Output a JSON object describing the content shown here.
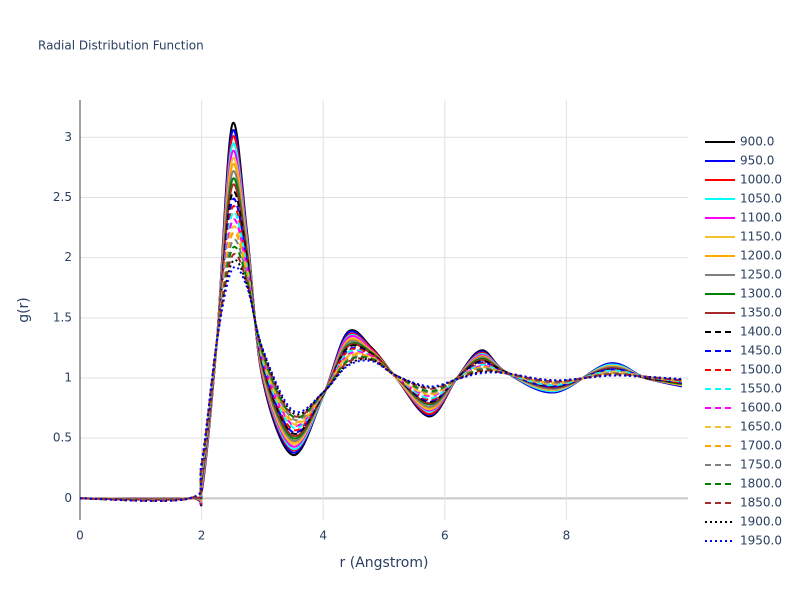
{
  "chart_data": {
    "type": "line",
    "title": "Radial Distribution Function",
    "x_label": "r (Angstrom)",
    "y_label": "g(r)",
    "x": [
      0,
      1.8,
      2.0,
      2.25,
      2.5,
      2.75,
      3.0,
      3.5,
      4.0,
      4.4,
      4.8,
      5.2,
      5.75,
      6.2,
      6.6,
      7.0,
      7.8,
      8.7,
      9.3,
      9.9
    ],
    "xlim": [
      0,
      10
    ],
    "xticks": [
      0,
      2,
      4,
      6,
      8
    ],
    "ylim": [
      -0.18,
      3.31
    ],
    "yticks": [
      0,
      0.5,
      1,
      1.5,
      2,
      2.5,
      3
    ],
    "grid": true,
    "legend": "right",
    "series": [
      {
        "name": "900.0",
        "color": "#000000",
        "dash": "solid",
        "values": [
          0,
          0,
          0.05,
          1.3,
          3.1,
          2.2,
          1,
          0.36,
          0.85,
          1.38,
          1.25,
          1,
          0.68,
          1,
          1.23,
          1.05,
          0.88,
          1.12,
          1,
          0.93
        ]
      },
      {
        "name": "950.0",
        "color": "#0000ff",
        "dash": "solid",
        "values": [
          0,
          0,
          0.06,
          1.3,
          3.04,
          2.18,
          1.01,
          0.38,
          0.85,
          1.37,
          1.24,
          1,
          0.69,
          1,
          1.22,
          1.05,
          0.88,
          1.12,
          1,
          0.93
        ]
      },
      {
        "name": "1000.0",
        "color": "#ff0000",
        "dash": "solid",
        "values": [
          0,
          0,
          0.07,
          1.3,
          2.99,
          2.16,
          1.02,
          0.4,
          0.85,
          1.35,
          1.24,
          1,
          0.7,
          1,
          1.21,
          1.05,
          0.89,
          1.11,
          1,
          0.94
        ]
      },
      {
        "name": "1050.0",
        "color": "#00ffff",
        "dash": "solid",
        "values": [
          0,
          0,
          0.09,
          1.3,
          2.93,
          2.14,
          1.04,
          0.41,
          0.85,
          1.34,
          1.23,
          1,
          0.72,
          1,
          1.2,
          1.05,
          0.89,
          1.11,
          1,
          0.94
        ]
      },
      {
        "name": "1100.0",
        "color": "#ff00ff",
        "dash": "solid",
        "values": [
          0,
          0,
          0.1,
          1.3,
          2.87,
          2.11,
          1.05,
          0.43,
          0.86,
          1.33,
          1.23,
          1,
          0.73,
          1,
          1.19,
          1.05,
          0.9,
          1.1,
          1,
          0.94
        ]
      },
      {
        "name": "1150.0",
        "color": "#f2c12e",
        "dash": "solid",
        "values": [
          0,
          0,
          0.11,
          1.3,
          2.81,
          2.09,
          1.06,
          0.45,
          0.86,
          1.31,
          1.22,
          1,
          0.74,
          1,
          1.18,
          1.05,
          0.9,
          1.1,
          1,
          0.94
        ]
      },
      {
        "name": "1200.0",
        "color": "#ffa500",
        "dash": "solid",
        "values": [
          0,
          0,
          0.12,
          1.3,
          2.76,
          2.07,
          1.07,
          0.47,
          0.86,
          1.3,
          1.22,
          1.01,
          0.75,
          1,
          1.18,
          1.05,
          0.91,
          1.09,
          1,
          0.95
        ]
      },
      {
        "name": "1250.0",
        "color": "#808080",
        "dash": "solid",
        "values": [
          0,
          0,
          0.13,
          1.3,
          2.7,
          2.05,
          1.08,
          0.48,
          0.86,
          1.29,
          1.21,
          1.01,
          0.76,
          1,
          1.17,
          1.05,
          0.91,
          1.09,
          1,
          0.95
        ]
      },
      {
        "name": "1300.0",
        "color": "#008000",
        "dash": "solid",
        "values": [
          0,
          0,
          0.15,
          1.3,
          2.64,
          2.03,
          1.1,
          0.5,
          0.86,
          1.27,
          1.21,
          1.01,
          0.78,
          1,
          1.16,
          1.05,
          0.92,
          1.08,
          1,
          0.95
        ]
      },
      {
        "name": "1350.0",
        "color": "#a52a2a",
        "dash": "solid",
        "values": [
          0,
          0,
          0.16,
          1.3,
          2.59,
          2.01,
          1.11,
          0.52,
          0.86,
          1.26,
          1.2,
          1.01,
          0.79,
          1,
          1.15,
          1.05,
          0.92,
          1.08,
          1,
          0.96
        ]
      },
      {
        "name": "1400.0",
        "color": "#000000",
        "dash": "dash",
        "values": [
          0,
          0,
          0.17,
          1.3,
          2.53,
          1.99,
          1.12,
          0.54,
          0.86,
          1.25,
          1.2,
          1.01,
          0.8,
          1,
          1.14,
          1.05,
          0.93,
          1.07,
          1,
          0.96
        ]
      },
      {
        "name": "1450.0",
        "color": "#0000ff",
        "dash": "dash",
        "values": [
          0,
          0,
          0.18,
          1.3,
          2.47,
          1.96,
          1.13,
          0.55,
          0.87,
          1.23,
          1.19,
          1.01,
          0.81,
          0.99,
          1.13,
          1.04,
          0.93,
          1.07,
          1.01,
          0.96
        ]
      },
      {
        "name": "1500.0",
        "color": "#ff0000",
        "dash": "dash",
        "values": [
          0,
          0,
          0.19,
          1.3,
          2.41,
          1.94,
          1.14,
          0.57,
          0.87,
          1.22,
          1.19,
          1.01,
          0.82,
          0.99,
          1.12,
          1.04,
          0.94,
          1.06,
          1.01,
          0.96
        ]
      },
      {
        "name": "1550.0",
        "color": "#00ffff",
        "dash": "dash",
        "values": [
          0,
          0,
          0.2,
          1.3,
          2.36,
          1.92,
          1.15,
          0.59,
          0.87,
          1.21,
          1.18,
          1.01,
          0.83,
          0.99,
          1.11,
          1.04,
          0.94,
          1.06,
          1.01,
          0.97
        ]
      },
      {
        "name": "1600.0",
        "color": "#ff00ff",
        "dash": "dash",
        "values": [
          0,
          0,
          0.22,
          1.3,
          2.3,
          1.9,
          1.17,
          0.61,
          0.87,
          1.19,
          1.18,
          1.01,
          0.85,
          0.99,
          1.1,
          1.04,
          0.95,
          1.05,
          1.01,
          0.97
        ]
      },
      {
        "name": "1650.0",
        "color": "#f2c12e",
        "dash": "dash",
        "values": [
          0,
          0,
          0.23,
          1.3,
          2.24,
          1.88,
          1.18,
          0.62,
          0.87,
          1.18,
          1.17,
          1.01,
          0.86,
          0.99,
          1.09,
          1.04,
          0.95,
          1.05,
          1.01,
          0.97
        ]
      },
      {
        "name": "1700.0",
        "color": "#ffa500",
        "dash": "dash",
        "values": [
          0,
          0,
          0.24,
          1.3,
          2.19,
          1.86,
          1.19,
          0.64,
          0.87,
          1.17,
          1.17,
          1.02,
          0.87,
          0.99,
          1.09,
          1.04,
          0.96,
          1.04,
          1.01,
          0.98
        ]
      },
      {
        "name": "1750.0",
        "color": "#808080",
        "dash": "dash",
        "values": [
          0,
          0,
          0.25,
          1.3,
          2.13,
          1.84,
          1.2,
          0.66,
          0.87,
          1.15,
          1.16,
          1.02,
          0.88,
          0.99,
          1.08,
          1.04,
          0.96,
          1.04,
          1.01,
          0.98
        ]
      },
      {
        "name": "1800.0",
        "color": "#008000",
        "dash": "dash",
        "values": [
          0,
          0,
          0.26,
          1.3,
          2.07,
          1.81,
          1.21,
          0.68,
          0.88,
          1.14,
          1.16,
          1.02,
          0.89,
          0.99,
          1.07,
          1.04,
          0.97,
          1.03,
          1.01,
          0.98
        ]
      },
      {
        "name": "1850.0",
        "color": "#a52a2a",
        "dash": "dash",
        "values": [
          0,
          0,
          0.28,
          1.3,
          2.01,
          1.79,
          1.23,
          0.69,
          0.88,
          1.13,
          1.15,
          1.02,
          0.91,
          0.99,
          1.06,
          1.04,
          0.97,
          1.03,
          1.01,
          0.98
        ]
      },
      {
        "name": "1900.0",
        "color": "#000000",
        "dash": "dot",
        "values": [
          0,
          0,
          0.29,
          1.3,
          1.96,
          1.77,
          1.24,
          0.71,
          0.88,
          1.11,
          1.15,
          1.02,
          0.92,
          0.99,
          1.05,
          1.04,
          0.98,
          1.02,
          1.01,
          0.99
        ]
      },
      {
        "name": "1950.0",
        "color": "#0000ff",
        "dash": "dot",
        "values": [
          0,
          0,
          0.3,
          1.3,
          1.9,
          1.75,
          1.25,
          0.73,
          0.88,
          1.1,
          1.14,
          1.02,
          0.93,
          0.99,
          1.04,
          1.04,
          0.98,
          1.02,
          1.01,
          0.99
        ]
      }
    ]
  }
}
